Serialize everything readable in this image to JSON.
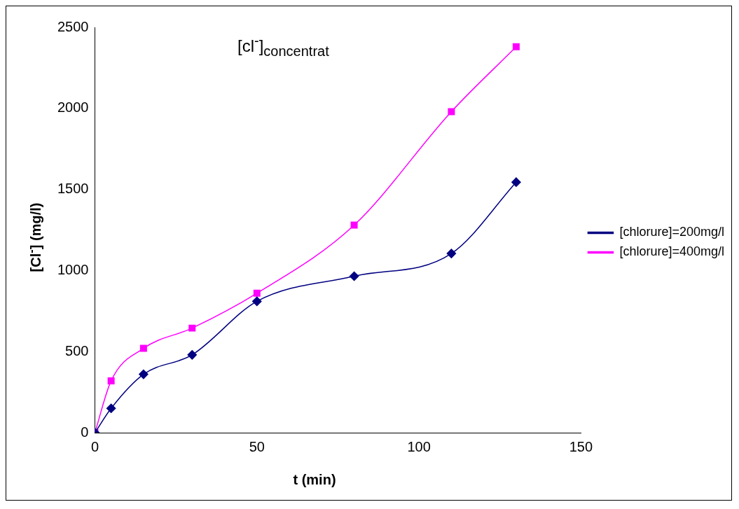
{
  "chart_data": {
    "type": "line",
    "xlabel": "t (min)",
    "ylabel": "[Cl$^{-}$] (mg/l)",
    "annotations": [
      "[cl$^{-}$]$_{concentrat}$"
    ],
    "x": [
      0,
      5,
      15,
      30,
      50,
      80,
      110,
      130
    ],
    "series": [
      {
        "name": "[chlorure]=200mg/l",
        "color": "#000080",
        "marker": "diamond",
        "values": [
          0,
          150,
          360,
          480,
          810,
          965,
          1105,
          1545
        ]
      },
      {
        "name": "[chlorure]=400mg/l",
        "color": "#ff00ff",
        "marker": "square",
        "values": [
          0,
          320,
          520,
          645,
          860,
          1280,
          1980,
          2380
        ]
      }
    ],
    "xlim": [
      0,
      150
    ],
    "xticks": [
      0,
      50,
      100,
      150
    ],
    "ylim": [
      0,
      2500
    ],
    "yticks": [
      0,
      500,
      1000,
      1500,
      2000,
      2500
    ],
    "grid": false,
    "legend": "right"
  }
}
